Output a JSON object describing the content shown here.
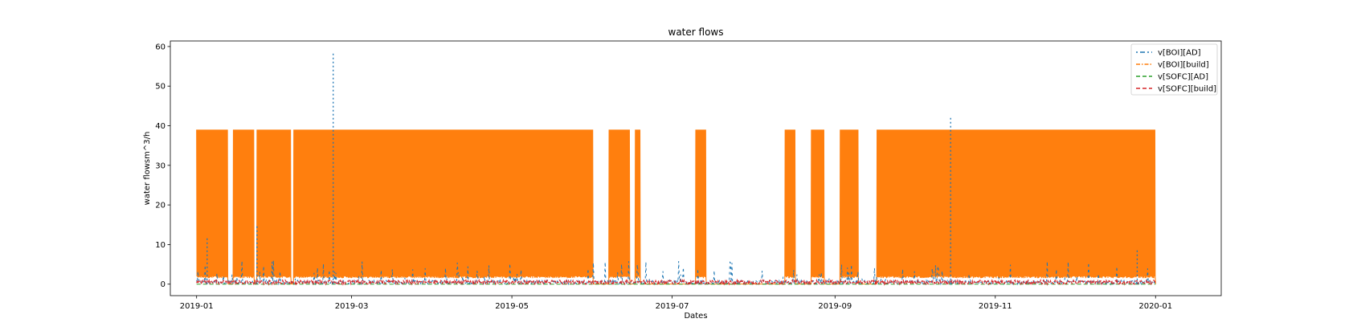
{
  "chart_data": {
    "type": "line",
    "title": "water flows",
    "xlabel": "Dates",
    "ylabel": "water flowsm^3/h",
    "x_range": [
      "2018-12-22",
      "2020-01-26"
    ],
    "data_range": [
      "2019-01-01",
      "2019-12-31"
    ],
    "ylim": [
      -2.9,
      61.4
    ],
    "y_ticks": [
      0,
      10,
      20,
      30,
      40,
      50,
      60
    ],
    "x_ticks": [
      "2019-01",
      "2019-03",
      "2019-05",
      "2019-07",
      "2019-09",
      "2019-11",
      "2020-01"
    ],
    "x_tick_dates": [
      "2019-01-01",
      "2019-03-01",
      "2019-05-01",
      "2019-07-01",
      "2019-09-01",
      "2019-11-01",
      "2020-01-01"
    ],
    "grid": false,
    "legend_position": "top-right",
    "series": [
      {
        "name": "v[BOI][AD]",
        "color": "#1f77b4",
        "linestyle": "dashdot-sparse",
        "baseline": 1.0,
        "typical_peak": 6,
        "spikes": [
          {
            "date": "2019-01-05",
            "value": 12
          },
          {
            "date": "2019-01-24",
            "value": 15
          },
          {
            "date": "2019-02-22",
            "value": 58.5
          },
          {
            "date": "2019-10-15",
            "value": 42
          },
          {
            "date": "2019-12-25",
            "value": 9
          }
        ]
      },
      {
        "name": "v[BOI][build]",
        "color": "#ff7f0e",
        "linestyle": "dashdot",
        "max": 39,
        "min": 1.5,
        "active_periods": [
          [
            "2019-01-01",
            "2019-01-12"
          ],
          [
            "2019-01-15",
            "2019-01-22"
          ],
          [
            "2019-01-24",
            "2019-02-05"
          ],
          [
            "2019-02-07",
            "2019-05-31"
          ],
          [
            "2019-06-07",
            "2019-06-14"
          ],
          [
            "2019-06-17",
            "2019-06-18"
          ],
          [
            "2019-07-10",
            "2019-07-13"
          ],
          [
            "2019-08-13",
            "2019-08-16"
          ],
          [
            "2019-08-23",
            "2019-08-27"
          ],
          [
            "2019-09-03",
            "2019-09-09"
          ],
          [
            "2019-09-17",
            "2019-12-31"
          ]
        ]
      },
      {
        "name": "v[SOFC][AD]",
        "color": "#2ca02c",
        "linestyle": "dashed",
        "value": 0
      },
      {
        "name": "v[SOFC][build]",
        "color": "#d62728",
        "linestyle": "dashed",
        "max": 1.0
      }
    ]
  }
}
